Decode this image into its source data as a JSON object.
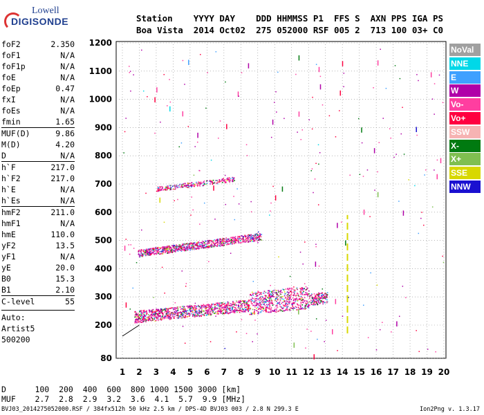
{
  "logo": {
    "line1": "Lowell",
    "line2": "DIGISONDE"
  },
  "header": {
    "labels": "Station    YYYY DAY    DDD HHMMSS P1  FFS S  AXN PPS IGA PS",
    "values": "Boa Vista  2014 Oct02  275 052000 RSF 005 2  713 100 03+ C0"
  },
  "parameters": {
    "group1": [
      {
        "name": "foF2",
        "value": "2.350"
      },
      {
        "name": "foF1",
        "value": "N/A"
      },
      {
        "name": "foF1p",
        "value": "N/A"
      },
      {
        "name": "foE",
        "value": "N/A"
      },
      {
        "name": "foEp",
        "value": "0.47"
      },
      {
        "name": "fxI",
        "value": "N/A"
      },
      {
        "name": "foEs",
        "value": "N/A"
      },
      {
        "name": "fmin",
        "value": "1.65"
      }
    ],
    "group2": [
      {
        "name": "MUF(D)",
        "value": "9.86"
      },
      {
        "name": "M(D)",
        "value": "4.20"
      },
      {
        "name": "D",
        "value": "N/A"
      }
    ],
    "group3": [
      {
        "name": "h`F",
        "value": "217.0"
      },
      {
        "name": "h`F2",
        "value": "217.0"
      },
      {
        "name": "h`E",
        "value": "N/A"
      },
      {
        "name": "h`Es",
        "value": "N/A"
      }
    ],
    "group4": [
      {
        "name": "hmF2",
        "value": "211.0"
      },
      {
        "name": "hmF1",
        "value": "N/A"
      },
      {
        "name": "hmE",
        "value": "110.0"
      },
      {
        "name": "yF2",
        "value": "13.5"
      },
      {
        "name": "yF1",
        "value": "N/A"
      },
      {
        "name": "yE",
        "value": "20.0"
      },
      {
        "name": "B0",
        "value": "15.3"
      },
      {
        "name": "B1",
        "value": "2.10"
      }
    ],
    "group5": [
      {
        "name": "C-level",
        "value": "55"
      }
    ],
    "auto": [
      "Auto:",
      "Artist5",
      "500200"
    ]
  },
  "legend": [
    {
      "label": "NoVal",
      "color": "#a0a0a0"
    },
    {
      "label": "NNE",
      "color": "#00d8e8"
    },
    {
      "label": "E",
      "color": "#3fa0ff"
    },
    {
      "label": "W",
      "color": "#b000a8"
    },
    {
      "label": "Vo-",
      "color": "#ff3ea0"
    },
    {
      "label": "Vo+",
      "color": "#ff0040"
    },
    {
      "label": "SSW",
      "color": "#f6b3b3"
    },
    {
      "label": "X-",
      "color": "#007a10"
    },
    {
      "label": "X+",
      "color": "#7fbf50"
    },
    {
      "label": "SSE",
      "color": "#d8d800"
    },
    {
      "label": "NNW",
      "color": "#1a10d0"
    }
  ],
  "footer": {
    "d_row": "D      100  200  400  600  800 1000 1500 3000 [km]",
    "muf_row": "MUF    2.7  2.8  2.9  3.2  3.6  4.1  5.7  9.9 [MHz]",
    "file_line": "BVJ03_2014275052000.RSF / 384fx512h 50 kHz 2.5 km / DPS-4D BVJ03 003 / 2.8 N 299.3 E",
    "version": "Ion2Png v. 1.3.17"
  },
  "chart_data": {
    "type": "scatter",
    "xticks": [
      1,
      2,
      3,
      4,
      5,
      6,
      7,
      8,
      9,
      10,
      11,
      12,
      13,
      14,
      15,
      16,
      17,
      18,
      19,
      20
    ],
    "yticks": [
      80,
      200,
      300,
      400,
      500,
      600,
      700,
      800,
      900,
      1000,
      1100,
      1200
    ],
    "xlim": [
      0.6,
      20.2
    ],
    "ylim": [
      80,
      1200
    ],
    "ylim_base": 200,
    "grid": true,
    "legend_position": "right",
    "traces": [
      {
        "name": "F2 trace",
        "x": [
          1.7,
          13.1
        ],
        "y": [
          222,
          290
        ],
        "thickness": 42
      },
      {
        "name": "2F2 echo",
        "x": [
          1.9,
          9.2
        ],
        "y": [
          450,
          510
        ],
        "thickness": 26
      },
      {
        "name": "3F2 echo",
        "x": [
          3.0,
          7.6
        ],
        "y": [
          680,
          715
        ],
        "thickness": 16
      }
    ],
    "vertical_marker": {
      "x": 14.3,
      "y": [
        170,
        590
      ],
      "color": "#d8d800"
    },
    "muf_curve": {
      "x": [
        1.0,
        2.0
      ],
      "y": [
        160,
        200
      ]
    }
  }
}
